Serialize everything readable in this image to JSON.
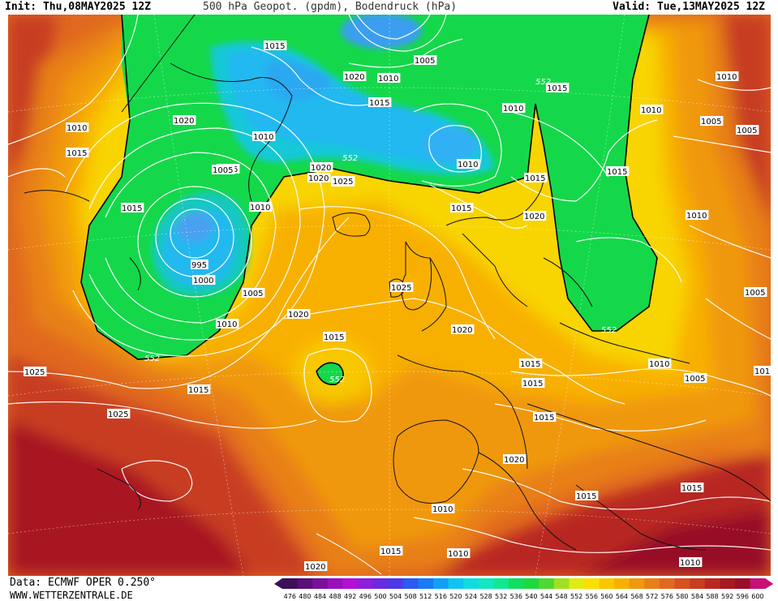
{
  "header": {
    "init": "Init: Thu,08MAY2025 12Z",
    "title": "500 hPa Geopot. (gpdm), Bodendruck (hPa)",
    "valid": "Valid: Tue,13MAY2025 12Z"
  },
  "footer": {
    "source": "Data: ECMWF OPER 0.250°",
    "site": "WWW.WETTERZENTRALE.DE"
  },
  "legend": {
    "values": [
      "476",
      "480",
      "484",
      "488",
      "492",
      "496",
      "500",
      "504",
      "508",
      "512",
      "516",
      "520",
      "524",
      "528",
      "532",
      "536",
      "540",
      "544",
      "548",
      "552",
      "556",
      "560",
      "564",
      "568",
      "572",
      "576",
      "580",
      "584",
      "588",
      "592",
      "596",
      "600"
    ],
    "colors": [
      "#3c0f5a",
      "#5a0f7a",
      "#7a0f9a",
      "#9a0fba",
      "#b40fd4",
      "#8c1fd8",
      "#6a2ae0",
      "#4a3ae8",
      "#2a5af0",
      "#1a7af4",
      "#10a0f4",
      "#10c4f0",
      "#10dce0",
      "#10e8c0",
      "#10e890",
      "#10e060",
      "#20d840",
      "#50d830",
      "#a0e020",
      "#e0ec10",
      "#f8e000",
      "#f8c800",
      "#f8b000",
      "#f09810",
      "#e88018",
      "#e06820",
      "#d85020",
      "#c83c20",
      "#b82820",
      "#a81820",
      "#981028",
      "#c80f78"
    ]
  },
  "map": {
    "colors": {
      "sea_base": "#e8701c",
      "orange": "#f08c10",
      "yellow": "#f8d400",
      "green": "#10d840",
      "cyan": "#18c8f0",
      "blue": "#3aa0f0",
      "red": "#c83c20",
      "deep_red": "#a81820",
      "isobar": "#ffffff",
      "coast": "#111111"
    },
    "labels": [
      {
        "t": "1015",
        "k": "isobar"
      },
      {
        "t": "1005",
        "k": "isobar"
      },
      {
        "t": "1010",
        "k": "isobar"
      },
      {
        "t": "1020",
        "k": "isobar"
      },
      {
        "t": "1010",
        "k": "isobar"
      },
      {
        "t": "1015",
        "k": "isobar"
      },
      {
        "t": "552",
        "k": "height"
      },
      {
        "t": "1020",
        "k": "isobar"
      },
      {
        "t": "1010",
        "k": "isobar"
      },
      {
        "t": "1010",
        "k": "isobar"
      },
      {
        "t": "1020",
        "k": "isobar"
      },
      {
        "t": "1010",
        "k": "isobar"
      },
      {
        "t": "1015",
        "k": "isobar"
      },
      {
        "t": "1005",
        "k": "isobar"
      },
      {
        "t": "1010",
        "k": "isobar"
      },
      {
        "t": "1005",
        "k": "isobar"
      },
      {
        "t": "1005",
        "k": "isobar"
      },
      {
        "t": "1015",
        "k": "isobar"
      },
      {
        "t": "1020",
        "k": "isobar"
      },
      {
        "t": "1020",
        "k": "isobar"
      },
      {
        "t": "552",
        "k": "height"
      },
      {
        "t": "1025",
        "k": "isobar"
      },
      {
        "t": "1005",
        "k": "isobar"
      },
      {
        "t": "1015",
        "k": "isobar"
      },
      {
        "t": "1015",
        "k": "isobar"
      },
      {
        "t": "1010",
        "k": "isobar"
      },
      {
        "t": "1015",
        "k": "isobar"
      },
      {
        "t": "1020",
        "k": "isobar"
      },
      {
        "t": "1015",
        "k": "isobar"
      },
      {
        "t": "1010",
        "k": "isobar"
      },
      {
        "t": "995",
        "k": "isobar"
      },
      {
        "t": "1000",
        "k": "isobar"
      },
      {
        "t": "1005",
        "k": "isobar"
      },
      {
        "t": "1025",
        "k": "isobar"
      },
      {
        "t": "1010",
        "k": "isobar"
      },
      {
        "t": "1005",
        "k": "isobar"
      },
      {
        "t": "1020",
        "k": "isobar"
      },
      {
        "t": "1010",
        "k": "isobar"
      },
      {
        "t": "1015",
        "k": "isobar"
      },
      {
        "t": "552",
        "k": "height"
      },
      {
        "t": "1020",
        "k": "isobar"
      },
      {
        "t": "552",
        "k": "height"
      },
      {
        "t": "1025",
        "k": "isobar"
      },
      {
        "t": "1015",
        "k": "isobar"
      },
      {
        "t": "552",
        "k": "height"
      },
      {
        "t": "1015",
        "k": "isobar"
      },
      {
        "t": "1015",
        "k": "isobar"
      },
      {
        "t": "1010",
        "k": "isobar"
      },
      {
        "t": "1005",
        "k": "isobar"
      },
      {
        "t": "1015",
        "k": "isobar"
      },
      {
        "t": "1020",
        "k": "isobar"
      },
      {
        "t": "1015",
        "k": "isobar"
      },
      {
        "t": "1025",
        "k": "isobar"
      },
      {
        "t": "1015",
        "k": "isobar"
      },
      {
        "t": "1010",
        "k": "isobar"
      },
      {
        "t": "1015",
        "k": "isobar"
      },
      {
        "t": "1010",
        "k": "isobar"
      },
      {
        "t": "1015",
        "k": "isobar"
      },
      {
        "t": "1010",
        "k": "isobar"
      },
      {
        "t": "1020",
        "k": "isobar"
      }
    ]
  }
}
